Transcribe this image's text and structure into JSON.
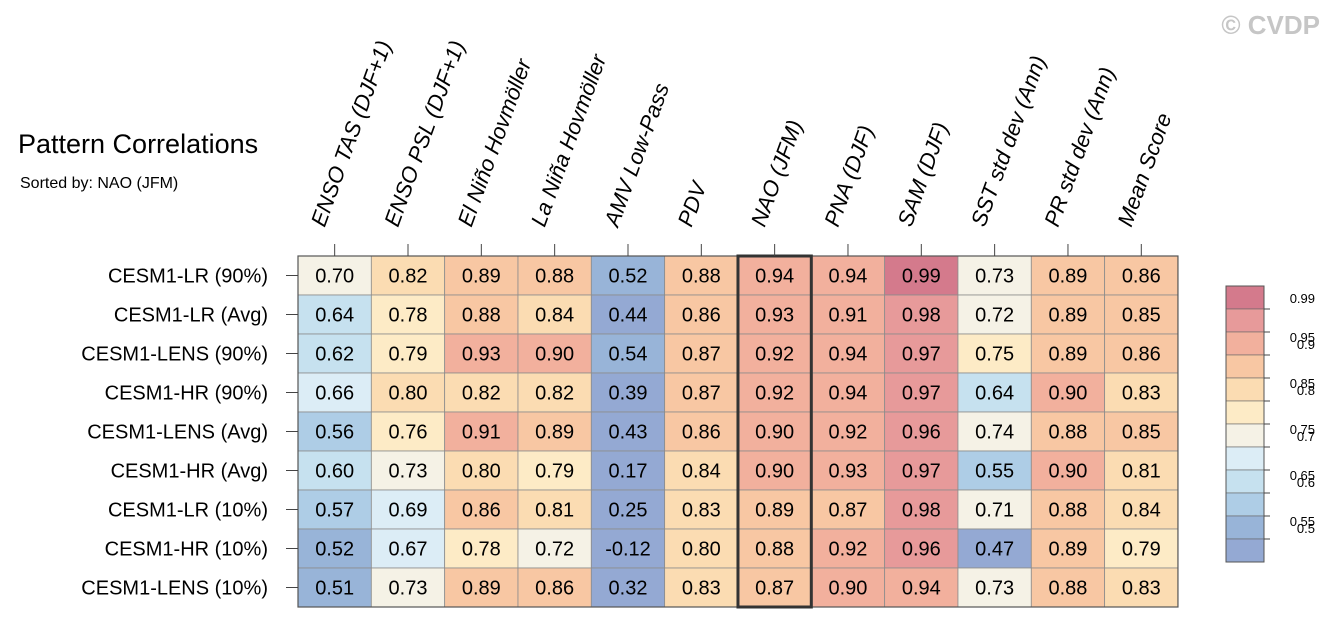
{
  "watermark": "© CVDP",
  "chart_data": {
    "type": "heatmap",
    "title": "Pattern Correlations",
    "subtitle": "Sorted by: NAO (JFM)",
    "highlighted_column": "NAO (JFM)",
    "columns": [
      "ENSO TAS (DJF+1)",
      "ENSO PSL (DJF+1)",
      "El Niño Hovmöller",
      "La Niña Hovmöller",
      "AMV Low-Pass",
      "PDV",
      "NAO (JFM)",
      "PNA (DJF)",
      "SAM (DJF)",
      "SST std dev (Ann)",
      "PR std dev (Ann)",
      "Mean Score"
    ],
    "rows": [
      {
        "label": "CESM1-LR (90%)",
        "values": [
          "0.70",
          "0.82",
          "0.89",
          "0.88",
          "0.52",
          "0.88",
          "0.94",
          "0.94",
          "0.99",
          "0.73",
          "0.89",
          "0.86"
        ]
      },
      {
        "label": "CESM1-LR (Avg)",
        "values": [
          "0.64",
          "0.78",
          "0.88",
          "0.84",
          "0.44",
          "0.86",
          "0.93",
          "0.91",
          "0.98",
          "0.72",
          "0.89",
          "0.85"
        ]
      },
      {
        "label": "CESM1-LENS (90%)",
        "values": [
          "0.62",
          "0.79",
          "0.93",
          "0.90",
          "0.54",
          "0.87",
          "0.92",
          "0.94",
          "0.97",
          "0.75",
          "0.89",
          "0.86"
        ]
      },
      {
        "label": "CESM1-HR (90%)",
        "values": [
          "0.66",
          "0.80",
          "0.82",
          "0.82",
          "0.39",
          "0.87",
          "0.92",
          "0.94",
          "0.97",
          "0.64",
          "0.90",
          "0.83"
        ]
      },
      {
        "label": "CESM1-LENS (Avg)",
        "values": [
          "0.56",
          "0.76",
          "0.91",
          "0.89",
          "0.43",
          "0.86",
          "0.90",
          "0.92",
          "0.96",
          "0.74",
          "0.88",
          "0.85"
        ]
      },
      {
        "label": "CESM1-HR (Avg)",
        "values": [
          "0.60",
          "0.73",
          "0.80",
          "0.79",
          "0.17",
          "0.84",
          "0.90",
          "0.93",
          "0.97",
          "0.55",
          "0.90",
          "0.81"
        ]
      },
      {
        "label": "CESM1-LR (10%)",
        "values": [
          "0.57",
          "0.69",
          "0.86",
          "0.81",
          "0.25",
          "0.83",
          "0.89",
          "0.87",
          "0.98",
          "0.71",
          "0.88",
          "0.84"
        ]
      },
      {
        "label": "CESM1-HR (10%)",
        "values": [
          "0.52",
          "0.67",
          "0.78",
          "0.72",
          "-0.12",
          "0.80",
          "0.88",
          "0.92",
          "0.96",
          "0.47",
          "0.89",
          "0.79"
        ]
      },
      {
        "label": "CESM1-LENS (10%)",
        "values": [
          "0.51",
          "0.73",
          "0.89",
          "0.86",
          "0.32",
          "0.83",
          "0.87",
          "0.90",
          "0.94",
          "0.73",
          "0.88",
          "0.83"
        ]
      }
    ],
    "colorbar": {
      "levels": [
        "0.99",
        "0.95",
        "0.9",
        "0.85",
        "0.8",
        "0.75",
        "0.7",
        "0.65",
        "0.6",
        "0.55",
        "0.5"
      ],
      "bin_lower_bounds": [
        0.99,
        0.95,
        0.9,
        0.85,
        0.8,
        0.75,
        0.7,
        0.65,
        0.6,
        0.55,
        0.5,
        -1.0
      ],
      "colors": [
        "#d47a8c",
        "#e79a9a",
        "#f2b09d",
        "#f8c7a3",
        "#fbdcb2",
        "#fdebc6",
        "#f5f2e6",
        "#dcedf6",
        "#c6e1ef",
        "#aecde6",
        "#98b4d8",
        "#94a9d3"
      ]
    }
  }
}
